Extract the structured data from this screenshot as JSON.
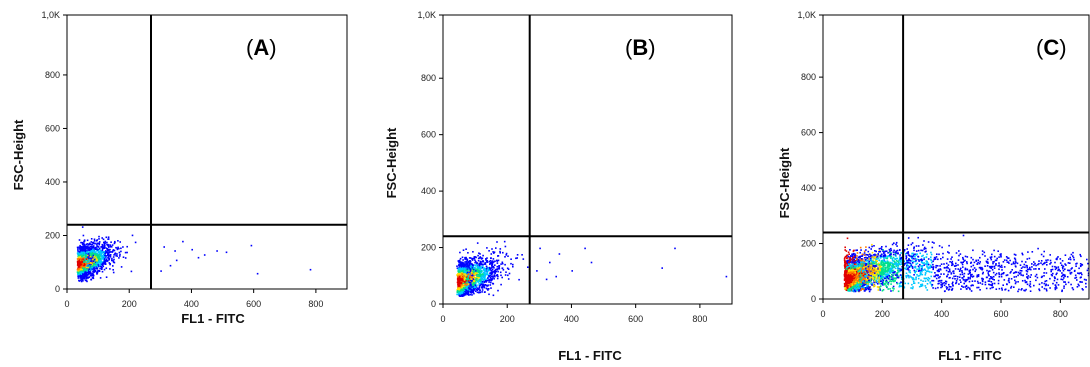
{
  "figure": {
    "panels": [
      {
        "label_open": "(",
        "label_letter": "A",
        "label_close": ")"
      },
      {
        "label_open": "(",
        "label_letter": "B",
        "label_close": ")"
      },
      {
        "label_open": "(",
        "label_letter": "C",
        "label_close": ")"
      }
    ]
  },
  "chart_data": [
    {
      "type": "scatter",
      "xlabel": "FL1 - FITC",
      "ylabel": "FSC-Height",
      "xlim": [
        0,
        900
      ],
      "ylim": [
        0,
        1024
      ],
      "x_ticks": [
        0,
        200,
        400,
        600,
        800
      ],
      "x_tick_labels": [
        "0",
        "200",
        "400",
        "600",
        "800"
      ],
      "y_ticks": [
        0,
        200,
        400,
        600,
        800,
        1024
      ],
      "y_tick_labels": [
        "0",
        "200",
        "400",
        "600",
        "800",
        "1,0K"
      ],
      "gate": {
        "x": 270,
        "y": 240
      },
      "density_colors": [
        "#0000ff",
        "#00c8ff",
        "#00e08c",
        "#ffe000",
        "#ff7800",
        "#e00000"
      ],
      "population": {
        "center_x": 30,
        "center_y": 95,
        "spread_x": 55,
        "spread_y": 40,
        "tail_extent": 180,
        "points": 2200
      },
      "sparse_points": [
        [
          310,
          160
        ],
        [
          345,
          145
        ],
        [
          400,
          150
        ],
        [
          440,
          130
        ],
        [
          480,
          145
        ],
        [
          510,
          140
        ],
        [
          590,
          165
        ],
        [
          610,
          60
        ],
        [
          780,
          75
        ],
        [
          300,
          70
        ],
        [
          330,
          90
        ],
        [
          370,
          180
        ],
        [
          420,
          120
        ],
        [
          350,
          110
        ]
      ]
    },
    {
      "type": "scatter",
      "xlabel": "FL1 - FITC",
      "ylabel": "FSC-Height",
      "xlim": [
        0,
        900
      ],
      "ylim": [
        0,
        1024
      ],
      "x_ticks": [
        0,
        200,
        400,
        600,
        800
      ],
      "x_tick_labels": [
        "0",
        "200",
        "400",
        "600",
        "800"
      ],
      "y_ticks": [
        0,
        200,
        400,
        600,
        800,
        1024
      ],
      "y_tick_labels": [
        "0",
        "200",
        "400",
        "600",
        "800",
        "1,0K"
      ],
      "gate": {
        "x": 270,
        "y": 240
      },
      "density_colors": [
        "#0000ff",
        "#00c8ff",
        "#00e08c",
        "#ffe000",
        "#ff7800",
        "#e00000"
      ],
      "population": {
        "center_x": 40,
        "center_y": 80,
        "spread_x": 60,
        "spread_y": 45,
        "tail_extent": 200,
        "points": 2200
      },
      "sparse_points": [
        [
          300,
          200
        ],
        [
          330,
          150
        ],
        [
          360,
          180
        ],
        [
          400,
          120
        ],
        [
          440,
          200
        ],
        [
          460,
          150
        ],
        [
          680,
          130
        ],
        [
          720,
          200
        ],
        [
          880,
          100
        ],
        [
          320,
          90
        ],
        [
          350,
          100
        ],
        [
          290,
          120
        ]
      ]
    },
    {
      "type": "scatter",
      "xlabel": "FL1 - FITC",
      "ylabel": "FSC-Height",
      "xlim": [
        0,
        900
      ],
      "ylim": [
        0,
        1024
      ],
      "x_ticks": [
        0,
        200,
        400,
        600,
        800
      ],
      "x_tick_labels": [
        "0",
        "200",
        "400",
        "600",
        "800"
      ],
      "y_ticks": [
        0,
        200,
        400,
        600,
        800,
        1024
      ],
      "y_tick_labels": [
        "0",
        "200",
        "400",
        "600",
        "800",
        "1,0K"
      ],
      "gate": {
        "x": 270,
        "y": 240
      },
      "density_colors": [
        "#0000ff",
        "#00c8ff",
        "#00e08c",
        "#ffe000",
        "#ff7800",
        "#e00000"
      ],
      "population": {
        "center_x": 70,
        "center_y": 70,
        "spread_x": 120,
        "spread_y": 50,
        "tail_extent": 900,
        "points": 3600
      },
      "sparse_points": []
    }
  ]
}
